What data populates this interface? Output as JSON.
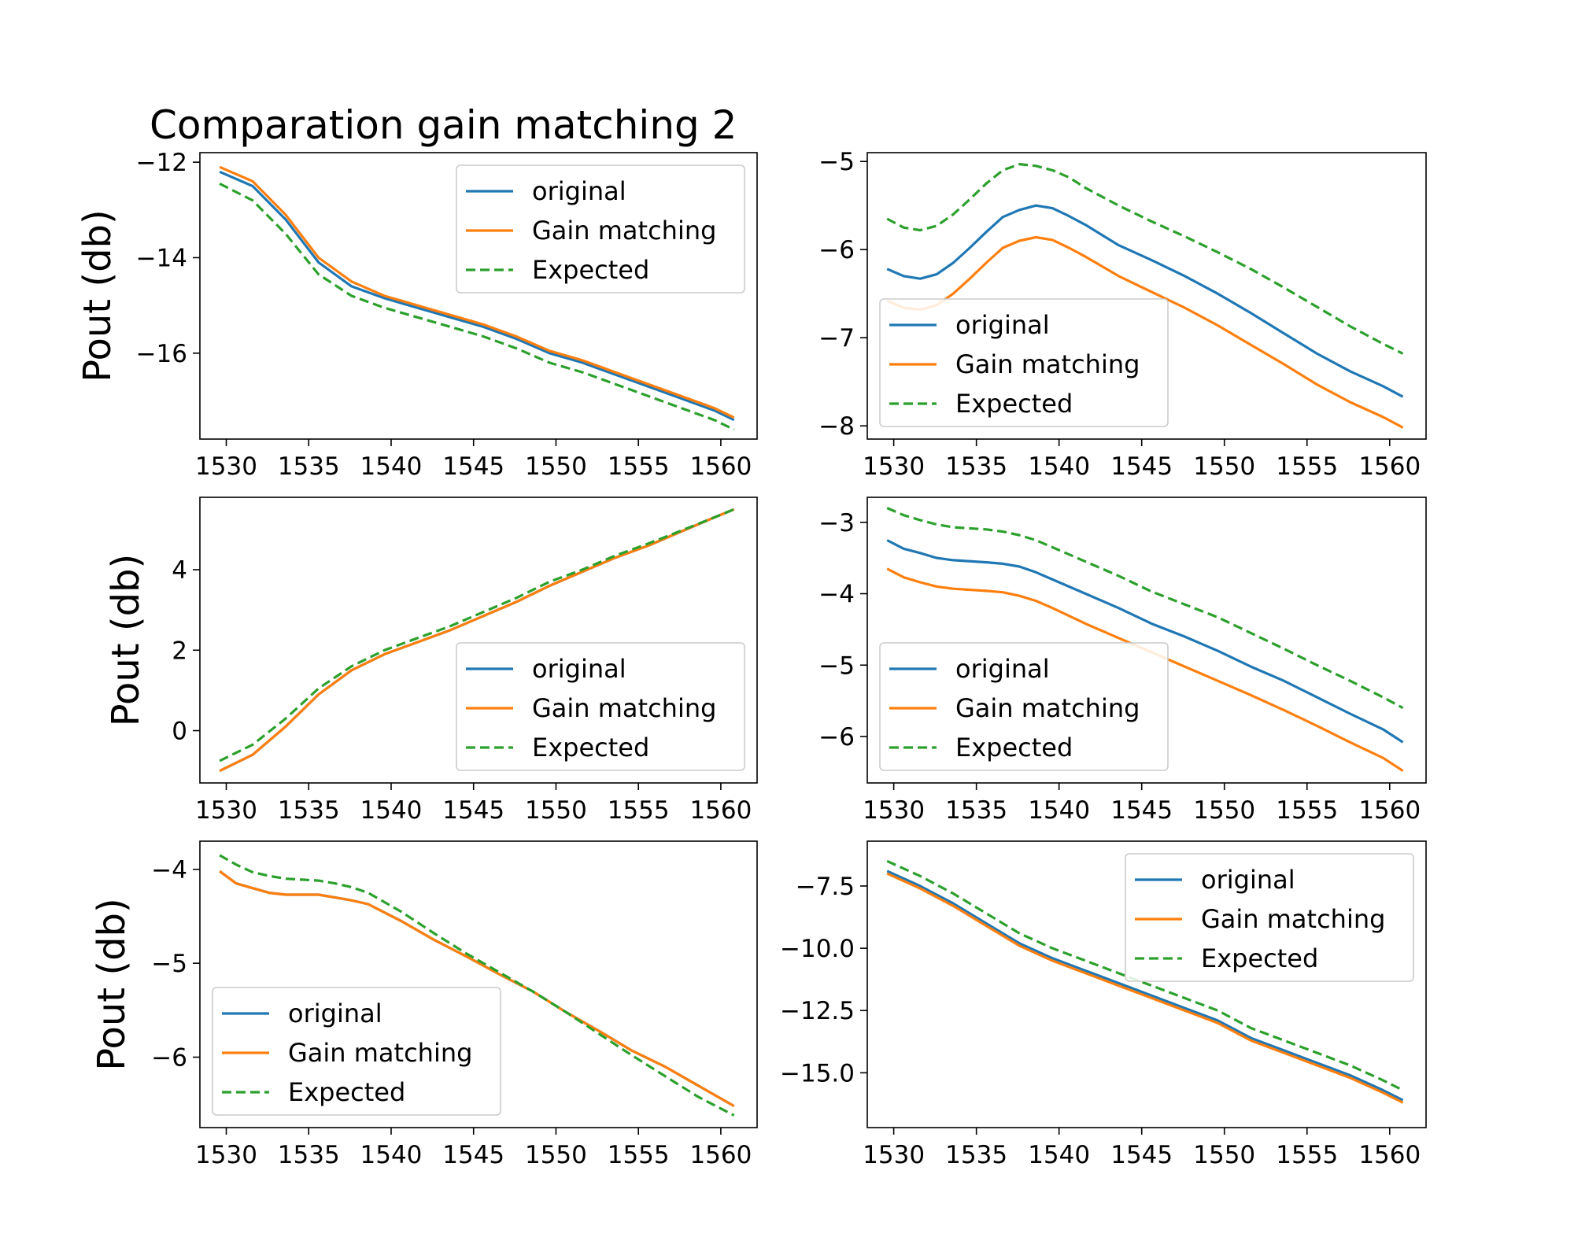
{
  "figure": {
    "title": "Comparation gain matching 2"
  },
  "legend_labels": [
    "original",
    "Gain matching",
    "Expected"
  ],
  "colors": {
    "original": "#1f77b4",
    "gain_matching": "#ff7f0e",
    "expected": "#2ca02c",
    "axes": "#000000",
    "background": "#ffffff"
  },
  "chart_data": [
    {
      "id": "top-left",
      "type": "line",
      "ylabel": "Pout (db)",
      "xlim": [
        1528.4,
        1562.2
      ],
      "ylim": [
        -17.8,
        -11.8
      ],
      "xticks": [
        1530,
        1535,
        1540,
        1545,
        1550,
        1555,
        1560
      ],
      "yticks": [
        -12,
        -14,
        -16
      ],
      "ytick_labels": [
        "−12",
        "−14",
        "−16"
      ],
      "legend_position": "upper right",
      "series": [
        {
          "name": "original",
          "x": [
            1529.6,
            1531.6,
            1533.6,
            1535.6,
            1537.6,
            1539.6,
            1541.6,
            1543.6,
            1545.6,
            1547.6,
            1549.6,
            1551.6,
            1553.6,
            1555.6,
            1557.6,
            1559.6,
            1560.8
          ],
          "y": [
            -12.2,
            -12.5,
            -13.2,
            -14.1,
            -14.6,
            -14.85,
            -15.05,
            -15.25,
            -15.45,
            -15.7,
            -16.0,
            -16.2,
            -16.45,
            -16.7,
            -16.95,
            -17.2,
            -17.4
          ]
        },
        {
          "name": "Gain matching",
          "x": [
            1529.6,
            1531.6,
            1533.6,
            1535.6,
            1537.6,
            1539.6,
            1541.6,
            1543.6,
            1545.6,
            1547.6,
            1549.6,
            1551.6,
            1553.6,
            1555.6,
            1557.6,
            1559.6,
            1560.8
          ],
          "y": [
            -12.1,
            -12.4,
            -13.1,
            -14.0,
            -14.5,
            -14.8,
            -15.0,
            -15.2,
            -15.4,
            -15.65,
            -15.95,
            -16.15,
            -16.4,
            -16.65,
            -16.9,
            -17.15,
            -17.35
          ]
        },
        {
          "name": "Expected",
          "x": [
            1529.6,
            1531.6,
            1533.6,
            1535.6,
            1537.6,
            1539.6,
            1541.6,
            1543.6,
            1545.6,
            1547.6,
            1549.6,
            1551.6,
            1553.6,
            1555.6,
            1557.6,
            1559.6,
            1560.8
          ],
          "y": [
            -12.45,
            -12.8,
            -13.5,
            -14.35,
            -14.8,
            -15.05,
            -15.25,
            -15.45,
            -15.65,
            -15.9,
            -16.2,
            -16.4,
            -16.65,
            -16.9,
            -17.15,
            -17.4,
            -17.6
          ]
        }
      ]
    },
    {
      "id": "top-right",
      "type": "line",
      "ylabel": "",
      "xlim": [
        1528.4,
        1562.2
      ],
      "ylim": [
        -8.15,
        -4.9
      ],
      "xticks": [
        1530,
        1535,
        1540,
        1545,
        1550,
        1555,
        1560
      ],
      "yticks": [
        -5,
        -6,
        -7,
        -8
      ],
      "ytick_labels": [
        "−5",
        "−6",
        "−7",
        "−8"
      ],
      "legend_position": "lower left",
      "series": [
        {
          "name": "original",
          "x": [
            1529.6,
            1530.6,
            1531.6,
            1532.6,
            1533.6,
            1534.6,
            1535.6,
            1536.6,
            1537.6,
            1538.6,
            1539.6,
            1540.6,
            1541.6,
            1543.6,
            1545.6,
            1547.6,
            1549.6,
            1551.6,
            1553.6,
            1555.6,
            1557.6,
            1559.6,
            1560.8
          ],
          "y": [
            -6.22,
            -6.3,
            -6.33,
            -6.28,
            -6.15,
            -5.98,
            -5.8,
            -5.63,
            -5.55,
            -5.5,
            -5.53,
            -5.62,
            -5.72,
            -5.95,
            -6.12,
            -6.3,
            -6.5,
            -6.72,
            -6.95,
            -7.18,
            -7.38,
            -7.55,
            -7.67
          ]
        },
        {
          "name": "Gain matching",
          "x": [
            1529.6,
            1530.6,
            1531.6,
            1532.6,
            1533.6,
            1534.6,
            1535.6,
            1536.6,
            1537.6,
            1538.6,
            1539.6,
            1540.6,
            1541.6,
            1543.6,
            1545.6,
            1547.6,
            1549.6,
            1551.6,
            1553.6,
            1555.6,
            1557.6,
            1559.6,
            1560.8
          ],
          "y": [
            -6.58,
            -6.66,
            -6.68,
            -6.63,
            -6.5,
            -6.33,
            -6.15,
            -5.98,
            -5.9,
            -5.86,
            -5.89,
            -5.98,
            -6.08,
            -6.3,
            -6.48,
            -6.66,
            -6.86,
            -7.08,
            -7.3,
            -7.53,
            -7.73,
            -7.9,
            -8.02
          ]
        },
        {
          "name": "Expected",
          "x": [
            1529.6,
            1530.6,
            1531.6,
            1532.6,
            1533.6,
            1534.6,
            1535.6,
            1536.6,
            1537.6,
            1538.6,
            1539.6,
            1540.6,
            1541.6,
            1543.6,
            1545.6,
            1547.6,
            1549.6,
            1551.6,
            1553.6,
            1555.6,
            1557.6,
            1559.6,
            1560.8
          ],
          "y": [
            -5.65,
            -5.75,
            -5.78,
            -5.73,
            -5.6,
            -5.43,
            -5.25,
            -5.1,
            -5.03,
            -5.05,
            -5.1,
            -5.18,
            -5.3,
            -5.5,
            -5.68,
            -5.85,
            -6.03,
            -6.22,
            -6.43,
            -6.65,
            -6.87,
            -7.07,
            -7.18
          ]
        }
      ]
    },
    {
      "id": "middle-left",
      "type": "line",
      "ylabel": "Pout (db)",
      "xlim": [
        1528.4,
        1562.2
      ],
      "ylim": [
        -1.3,
        5.8
      ],
      "xticks": [
        1530,
        1535,
        1540,
        1545,
        1550,
        1555,
        1560
      ],
      "yticks": [
        4,
        2,
        0
      ],
      "ytick_labels": [
        "4",
        "2",
        "0"
      ],
      "legend_position": "lower right",
      "series": [
        {
          "name": "original",
          "x": [
            1529.6,
            1531.6,
            1533.6,
            1535.6,
            1537.6,
            1539.6,
            1541.6,
            1543.6,
            1545.6,
            1547.6,
            1549.6,
            1551.6,
            1553.6,
            1555.6,
            1557.6,
            1559.6,
            1560.8
          ],
          "y": [
            -1.0,
            -0.6,
            0.1,
            0.9,
            1.5,
            1.9,
            2.2,
            2.5,
            2.85,
            3.2,
            3.6,
            3.95,
            4.3,
            4.6,
            4.95,
            5.3,
            5.5
          ]
        },
        {
          "name": "Gain matching",
          "x": [
            1529.6,
            1531.6,
            1533.6,
            1535.6,
            1537.6,
            1539.6,
            1541.6,
            1543.6,
            1545.6,
            1547.6,
            1549.6,
            1551.6,
            1553.6,
            1555.6,
            1557.6,
            1559.6,
            1560.8
          ],
          "y": [
            -1.0,
            -0.6,
            0.1,
            0.9,
            1.5,
            1.9,
            2.2,
            2.5,
            2.85,
            3.2,
            3.6,
            3.95,
            4.3,
            4.6,
            4.95,
            5.3,
            5.5
          ]
        },
        {
          "name": "Expected",
          "x": [
            1529.6,
            1531.6,
            1533.6,
            1535.6,
            1537.6,
            1539.6,
            1541.6,
            1543.6,
            1545.6,
            1547.6,
            1549.6,
            1551.6,
            1553.6,
            1555.6,
            1557.6,
            1559.6,
            1560.8
          ],
          "y": [
            -0.75,
            -0.35,
            0.3,
            1.05,
            1.6,
            2.0,
            2.3,
            2.6,
            2.95,
            3.3,
            3.7,
            4.0,
            4.35,
            4.65,
            4.97,
            5.3,
            5.5
          ]
        }
      ]
    },
    {
      "id": "middle-right",
      "type": "line",
      "ylabel": "",
      "xlim": [
        1528.4,
        1562.2
      ],
      "ylim": [
        -6.65,
        -2.65
      ],
      "xticks": [
        1530,
        1535,
        1540,
        1545,
        1550,
        1555,
        1560
      ],
      "yticks": [
        -3,
        -4,
        -5,
        -6
      ],
      "ytick_labels": [
        "−3",
        "−4",
        "−5",
        "−6"
      ],
      "legend_position": "lower left",
      "series": [
        {
          "name": "original",
          "x": [
            1529.6,
            1530.6,
            1531.6,
            1532.6,
            1533.6,
            1535.6,
            1536.6,
            1537.6,
            1538.6,
            1539.6,
            1541.6,
            1543.6,
            1545.6,
            1547.6,
            1549.6,
            1551.6,
            1553.6,
            1555.6,
            1557.6,
            1559.6,
            1560.8
          ],
          "y": [
            -3.25,
            -3.37,
            -3.43,
            -3.5,
            -3.53,
            -3.56,
            -3.58,
            -3.62,
            -3.7,
            -3.8,
            -4.0,
            -4.2,
            -4.42,
            -4.6,
            -4.8,
            -5.02,
            -5.22,
            -5.45,
            -5.68,
            -5.9,
            -6.08
          ]
        },
        {
          "name": "Gain matching",
          "x": [
            1529.6,
            1530.6,
            1531.6,
            1532.6,
            1533.6,
            1535.6,
            1536.6,
            1537.6,
            1538.6,
            1539.6,
            1541.6,
            1543.6,
            1545.6,
            1547.6,
            1549.6,
            1551.6,
            1553.6,
            1555.6,
            1557.6,
            1559.6,
            1560.8
          ],
          "y": [
            -3.65,
            -3.77,
            -3.84,
            -3.9,
            -3.93,
            -3.96,
            -3.98,
            -4.03,
            -4.1,
            -4.2,
            -4.42,
            -4.62,
            -4.82,
            -5.02,
            -5.22,
            -5.42,
            -5.63,
            -5.85,
            -6.08,
            -6.3,
            -6.48
          ]
        },
        {
          "name": "Expected",
          "x": [
            1529.6,
            1530.6,
            1531.6,
            1532.6,
            1533.6,
            1535.6,
            1536.6,
            1537.6,
            1538.6,
            1539.6,
            1541.6,
            1543.6,
            1545.6,
            1547.6,
            1549.6,
            1551.6,
            1553.6,
            1555.6,
            1557.6,
            1559.6,
            1560.8
          ],
          "y": [
            -2.8,
            -2.9,
            -2.97,
            -3.03,
            -3.07,
            -3.1,
            -3.13,
            -3.18,
            -3.25,
            -3.35,
            -3.55,
            -3.75,
            -3.97,
            -4.15,
            -4.33,
            -4.55,
            -4.77,
            -5.0,
            -5.22,
            -5.45,
            -5.6
          ]
        }
      ]
    },
    {
      "id": "bottom-left",
      "type": "line",
      "ylabel": "Pout (db)",
      "xlim": [
        1528.4,
        1562.2
      ],
      "ylim": [
        -6.75,
        -3.7
      ],
      "xticks": [
        1530,
        1535,
        1540,
        1545,
        1550,
        1555,
        1560
      ],
      "yticks": [
        -4,
        -5,
        -6
      ],
      "ytick_labels": [
        "−4",
        "−5",
        "−6"
      ],
      "legend_position": "lower left",
      "series": [
        {
          "name": "original",
          "x": [
            1529.6,
            1530.6,
            1531.6,
            1532.6,
            1533.6,
            1534.6,
            1535.6,
            1536.6,
            1537.6,
            1538.6,
            1540.6,
            1542.6,
            1544.6,
            1546.6,
            1548.6,
            1550.6,
            1552.6,
            1554.6,
            1556.6,
            1558.6,
            1560.8
          ],
          "y": [
            -4.02,
            -4.15,
            -4.2,
            -4.25,
            -4.27,
            -4.27,
            -4.27,
            -4.3,
            -4.33,
            -4.37,
            -4.55,
            -4.75,
            -4.93,
            -5.12,
            -5.3,
            -5.52,
            -5.72,
            -5.93,
            -6.1,
            -6.3,
            -6.52
          ]
        },
        {
          "name": "Gain matching",
          "x": [
            1529.6,
            1530.6,
            1531.6,
            1532.6,
            1533.6,
            1534.6,
            1535.6,
            1536.6,
            1537.6,
            1538.6,
            1540.6,
            1542.6,
            1544.6,
            1546.6,
            1548.6,
            1550.6,
            1552.6,
            1554.6,
            1556.6,
            1558.6,
            1560.8
          ],
          "y": [
            -4.02,
            -4.15,
            -4.2,
            -4.25,
            -4.27,
            -4.27,
            -4.27,
            -4.3,
            -4.33,
            -4.37,
            -4.55,
            -4.75,
            -4.93,
            -5.12,
            -5.3,
            -5.52,
            -5.72,
            -5.93,
            -6.1,
            -6.3,
            -6.52
          ]
        },
        {
          "name": "Expected",
          "x": [
            1529.6,
            1530.6,
            1531.6,
            1532.6,
            1533.6,
            1534.6,
            1535.6,
            1536.6,
            1537.6,
            1538.6,
            1540.6,
            1542.6,
            1544.6,
            1546.6,
            1548.6,
            1550.6,
            1552.6,
            1554.6,
            1556.6,
            1558.6,
            1560.8
          ],
          "y": [
            -3.85,
            -3.95,
            -4.03,
            -4.07,
            -4.1,
            -4.11,
            -4.12,
            -4.15,
            -4.19,
            -4.25,
            -4.45,
            -4.68,
            -4.9,
            -5.1,
            -5.3,
            -5.52,
            -5.75,
            -5.98,
            -6.2,
            -6.42,
            -6.62
          ]
        }
      ]
    },
    {
      "id": "bottom-right",
      "type": "line",
      "ylabel": "",
      "xlim": [
        1528.4,
        1562.2
      ],
      "ylim": [
        -17.2,
        -5.7
      ],
      "xticks": [
        1530,
        1535,
        1540,
        1545,
        1550,
        1555,
        1560
      ],
      "yticks": [
        -7.5,
        -10.0,
        -12.5,
        -15.0
      ],
      "ytick_labels": [
        "−7.5",
        "−10.0",
        "−12.5",
        "−15.0"
      ],
      "legend_position": "upper right",
      "series": [
        {
          "name": "original",
          "x": [
            1529.6,
            1531.6,
            1533.6,
            1535.6,
            1537.6,
            1539.6,
            1541.6,
            1543.6,
            1545.6,
            1547.6,
            1549.6,
            1551.6,
            1553.6,
            1555.6,
            1557.6,
            1559.6,
            1560.8
          ],
          "y": [
            -6.9,
            -7.5,
            -8.2,
            -9.0,
            -9.8,
            -10.4,
            -10.9,
            -11.4,
            -11.9,
            -12.4,
            -12.9,
            -13.6,
            -14.1,
            -14.6,
            -15.1,
            -15.7,
            -16.1
          ]
        },
        {
          "name": "Gain matching",
          "x": [
            1529.6,
            1531.6,
            1533.6,
            1535.6,
            1537.6,
            1539.6,
            1541.6,
            1543.6,
            1545.6,
            1547.6,
            1549.6,
            1551.6,
            1553.6,
            1555.6,
            1557.6,
            1559.6,
            1560.8
          ],
          "y": [
            -7.0,
            -7.6,
            -8.3,
            -9.1,
            -9.9,
            -10.5,
            -11.0,
            -11.5,
            -12.0,
            -12.5,
            -13.0,
            -13.7,
            -14.2,
            -14.7,
            -15.2,
            -15.8,
            -16.2
          ]
        },
        {
          "name": "Expected",
          "x": [
            1529.6,
            1531.6,
            1533.6,
            1535.6,
            1537.6,
            1539.6,
            1541.6,
            1543.6,
            1545.6,
            1547.6,
            1549.6,
            1551.6,
            1553.6,
            1555.6,
            1557.6,
            1559.6,
            1560.8
          ],
          "y": [
            -6.5,
            -7.1,
            -7.8,
            -8.6,
            -9.4,
            -10.0,
            -10.5,
            -11.0,
            -11.5,
            -12.0,
            -12.5,
            -13.2,
            -13.7,
            -14.2,
            -14.7,
            -15.3,
            -15.7
          ]
        }
      ]
    }
  ]
}
